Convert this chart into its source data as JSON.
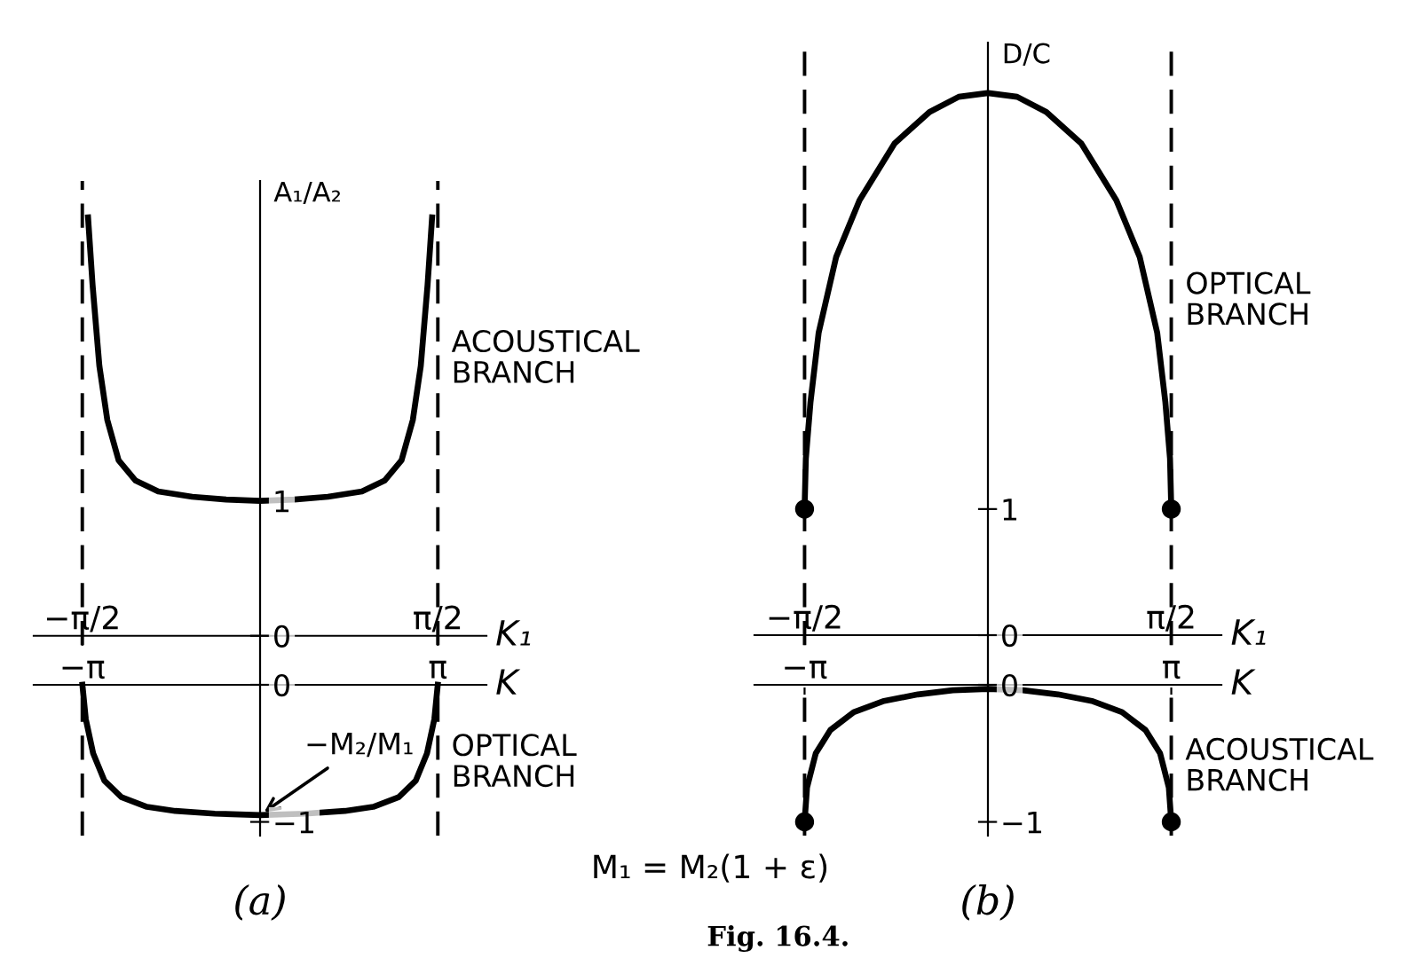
{
  "chart_data": [
    {
      "type": "line",
      "xlabel": "K₁",
      "ylabel": "A₁/A₂",
      "xlim": [
        -2.0,
        2.0
      ],
      "ylim": [
        -0.35,
        3.37
      ],
      "xticks": [
        {
          "value": -1.5708,
          "label": "−π/2"
        },
        {
          "value": 1.5708,
          "label": "π/2"
        }
      ],
      "yticks": [
        {
          "value": 0,
          "label": "0"
        },
        {
          "value": 1,
          "label": "1"
        }
      ],
      "ref_lines": [
        {
          "axis": "x",
          "value": -1.5708,
          "color": "#000000",
          "line_style": "dashed"
        },
        {
          "axis": "x",
          "value": 1.5708,
          "color": "#000000",
          "line_style": "dashed"
        }
      ],
      "series": [
        {
          "name": "ACOUSTICAL BRANCH",
          "color": "#000000",
          "x": [
            -1.52,
            -1.48,
            -1.42,
            -1.35,
            -1.25,
            -1.1,
            -0.9,
            -0.6,
            -0.3,
            0,
            0.3,
            0.6,
            0.9,
            1.1,
            1.25,
            1.35,
            1.42,
            1.48,
            1.52
          ],
          "values": [
            3.1,
            2.6,
            2.0,
            1.6,
            1.3,
            1.15,
            1.07,
            1.03,
            1.01,
            1.0,
            1.01,
            1.03,
            1.07,
            1.15,
            1.3,
            1.6,
            2.0,
            2.6,
            3.1
          ]
        }
      ]
    },
    {
      "type": "line",
      "xlabel": "K",
      "xlim": [
        -4.0,
        4.0
      ],
      "ylim": [
        -1.1,
        0
      ],
      "xticks": [
        {
          "value": -3.1416,
          "label": "−π"
        },
        {
          "value": 3.1416,
          "label": "π"
        }
      ],
      "yticks": [
        {
          "value": 0,
          "label": "0"
        },
        {
          "value": -1,
          "label": "−1"
        }
      ],
      "ref_lines": [
        {
          "axis": "x",
          "value": -3.1416,
          "color": "#000000",
          "line_style": "dashed"
        },
        {
          "axis": "x",
          "value": 3.1416,
          "color": "#000000",
          "line_style": "dashed"
        }
      ],
      "annotations": [
        {
          "text": "−M₂/M₁",
          "x": 0,
          "y": -0.95
        },
        "(a)"
      ],
      "series": [
        {
          "name": "OPTICAL BRANCH",
          "color": "#000000",
          "x": [
            -3.14,
            -3.08,
            -2.95,
            -2.75,
            -2.45,
            -2.0,
            -1.5,
            -0.8,
            0,
            0.8,
            1.5,
            2.0,
            2.45,
            2.75,
            2.95,
            3.08,
            3.14
          ],
          "values": [
            0,
            -0.25,
            -0.5,
            -0.7,
            -0.82,
            -0.89,
            -0.92,
            -0.94,
            -0.95,
            -0.94,
            -0.92,
            -0.89,
            -0.82,
            -0.7,
            -0.5,
            -0.25,
            0
          ]
        }
      ]
    },
    {
      "type": "line",
      "xlabel": "K₁",
      "ylabel": "D/C",
      "xlim": [
        -2.0,
        2.0
      ],
      "ylim": [
        -0.38,
        4.7
      ],
      "xticks": [
        {
          "value": -1.5708,
          "label": "−π/2"
        },
        {
          "value": 1.5708,
          "label": "π/2"
        }
      ],
      "yticks": [
        {
          "value": 0,
          "label": "0"
        },
        {
          "value": 1,
          "label": "1"
        }
      ],
      "ref_lines": [
        {
          "axis": "x",
          "value": -1.5708,
          "color": "#000000",
          "line_style": "dashed"
        },
        {
          "axis": "x",
          "value": 1.5708,
          "color": "#000000",
          "line_style": "dashed"
        }
      ],
      "series": [
        {
          "name": "OPTICAL BRANCH",
          "color": "#000000",
          "x": [
            -1.5708,
            -1.56,
            -1.52,
            -1.45,
            -1.3,
            -1.1,
            -0.8,
            -0.5,
            -0.25,
            0,
            0.25,
            0.5,
            0.8,
            1.1,
            1.3,
            1.45,
            1.52,
            1.56,
            1.5708
          ],
          "values": [
            1.0,
            1.4,
            1.85,
            2.4,
            3.0,
            3.45,
            3.9,
            4.15,
            4.27,
            4.3,
            4.27,
            4.15,
            3.9,
            3.45,
            3.0,
            2.4,
            1.85,
            1.4,
            1.0
          ]
        },
        {
          "type": "scatter",
          "marker": "circle",
          "color": "#000000",
          "x": [
            -1.5708,
            1.5708
          ],
          "values": [
            1.0,
            1.0
          ]
        }
      ]
    },
    {
      "type": "line",
      "xlabel": "K",
      "xlim": [
        -4.0,
        4.0
      ],
      "ylim": [
        -1.1,
        0
      ],
      "xticks": [
        {
          "value": -3.1416,
          "label": "−π"
        },
        {
          "value": 3.1416,
          "label": "π"
        }
      ],
      "yticks": [
        {
          "value": 0,
          "label": "0"
        },
        {
          "value": -1,
          "label": "−1"
        }
      ],
      "ref_lines": [
        {
          "axis": "x",
          "value": -3.1416,
          "color": "#000000",
          "line_style": "dashed"
        },
        {
          "axis": "x",
          "value": 3.1416,
          "color": "#000000",
          "line_style": "dashed"
        }
      ],
      "annotations": [
        "(b)"
      ],
      "series": [
        {
          "name": "ACOUSTICAL BRANCH",
          "color": "#000000",
          "x": [
            -3.1416,
            -3.1,
            -2.95,
            -2.7,
            -2.3,
            -1.8,
            -1.2,
            -0.6,
            0,
            0.6,
            1.2,
            1.8,
            2.3,
            2.7,
            2.95,
            3.1,
            3.1416
          ],
          "values": [
            -1,
            -0.75,
            -0.5,
            -0.33,
            -0.2,
            -0.12,
            -0.07,
            -0.04,
            -0.03,
            -0.04,
            -0.07,
            -0.12,
            -0.2,
            -0.33,
            -0.5,
            -0.75,
            -1
          ]
        },
        {
          "type": "scatter",
          "marker": "circle",
          "color": "#000000",
          "x": [
            -3.1416,
            3.1416
          ],
          "values": [
            -1,
            -1
          ]
        }
      ]
    },
    {
      "type": "other",
      "annotations": [
        "M₁ = M₂(1 + ε)",
        "Fig. 16.4."
      ]
    }
  ]
}
